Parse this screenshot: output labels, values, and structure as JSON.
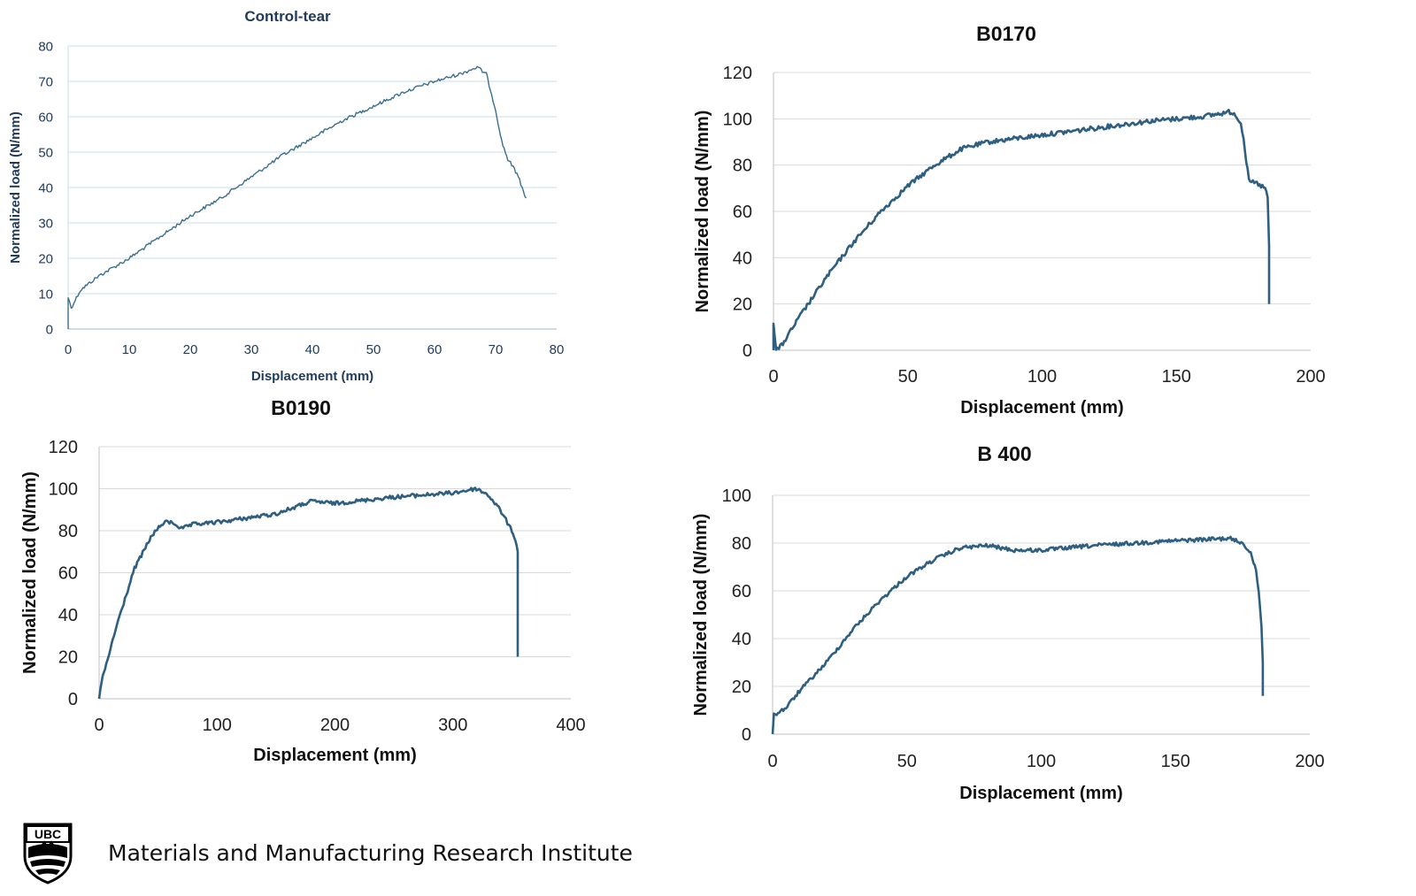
{
  "chart_data": [
    {
      "type": "line",
      "title": "Control-tear",
      "xlabel": "Displacement (mm)",
      "ylabel": "Normalized load (N/mm)",
      "xlim": [
        0,
        80
      ],
      "ylim": [
        0,
        80
      ],
      "xticks": [
        "0",
        "10",
        "20",
        "30",
        "40",
        "50",
        "60",
        "70",
        "80"
      ],
      "yticks": [
        "0",
        "10",
        "20",
        "30",
        "40",
        "50",
        "60",
        "70",
        "80"
      ],
      "grid": "horizontal",
      "color": "#3b6f8f",
      "series": [
        {
          "x": [
            0,
            0,
            0.5,
            2,
            5,
            10,
            15,
            20,
            25,
            30,
            35,
            40,
            45,
            50,
            55,
            60,
            64,
            67,
            68.5,
            70,
            71,
            72,
            73.5,
            75
          ],
          "y": [
            0,
            9,
            6,
            11,
            15,
            20,
            26,
            32,
            37,
            43,
            49,
            54,
            59,
            63,
            67,
            70,
            72,
            74,
            72,
            62,
            53,
            48,
            44,
            37
          ]
        }
      ]
    },
    {
      "type": "line",
      "title": "B0170",
      "xlabel": "Displacement (mm)",
      "ylabel": "Normalized load (N/mm)",
      "xlim": [
        0,
        200
      ],
      "ylim": [
        0,
        120
      ],
      "xticks": [
        "0",
        "50",
        "100",
        "150",
        "200"
      ],
      "yticks": [
        "0",
        "20",
        "40",
        "60",
        "80",
        "100",
        "120"
      ],
      "grid": "horizontal",
      "color": "#2e5f80",
      "series": [
        {
          "x": [
            0,
            0,
            1,
            3,
            10,
            20,
            30,
            40,
            50,
            60,
            70,
            80,
            100,
            120,
            140,
            160,
            170,
            172,
            174,
            175,
            176,
            177,
            180,
            183,
            184,
            184.5,
            184.5
          ],
          "y": [
            0,
            12,
            0,
            2,
            15,
            32,
            47,
            60,
            71,
            80,
            87,
            90,
            93,
            96,
            99,
            101,
            103,
            102,
            98,
            92,
            82,
            73,
            72,
            70,
            66,
            45,
            20
          ]
        }
      ]
    },
    {
      "type": "line",
      "title": "B0190",
      "xlabel": "Displacement (mm)",
      "ylabel": "Normalized load (N/mm)",
      "xlim": [
        0,
        400
      ],
      "ylim": [
        0,
        120
      ],
      "xticks": [
        "0",
        "100",
        "200",
        "300",
        "400"
      ],
      "yticks": [
        "0",
        "20",
        "40",
        "60",
        "80",
        "100",
        "120"
      ],
      "grid": "horizontal",
      "color": "#2e5f80",
      "series": [
        {
          "x": [
            0,
            2,
            5,
            15,
            30,
            45,
            55,
            62,
            70,
            80,
            100,
            150,
            180,
            200,
            250,
            300,
            320,
            330,
            340,
            345,
            350,
            353,
            355,
            355
          ],
          "y": [
            0,
            8,
            14,
            35,
            62,
            78,
            84,
            84,
            81,
            83,
            84,
            88,
            94,
            93,
            96,
            98,
            100,
            97,
            90,
            85,
            80,
            76,
            70,
            20
          ]
        }
      ]
    },
    {
      "type": "line",
      "title": "B 400",
      "xlabel": "Displacement (mm)",
      "ylabel": "Normalized load (N/mm)",
      "xlim": [
        0,
        200
      ],
      "ylim": [
        0,
        100
      ],
      "xticks": [
        "0",
        "50",
        "100",
        "150",
        "200"
      ],
      "yticks": [
        "0",
        "20",
        "40",
        "60",
        "80",
        "100"
      ],
      "grid": "horizontal",
      "color": "#2e5f80",
      "series": [
        {
          "x": [
            0,
            0.5,
            2,
            5,
            10,
            20,
            30,
            40,
            50,
            60,
            70,
            80,
            90,
            100,
            120,
            150,
            170,
            175,
            178,
            180,
            181,
            182,
            182.5,
            182.5
          ],
          "y": [
            0,
            8,
            9,
            11,
            18,
            30,
            44,
            56,
            66,
            73,
            78,
            79,
            77,
            77,
            79,
            81,
            82,
            80,
            76,
            68,
            60,
            45,
            30,
            16
          ]
        }
      ]
    }
  ],
  "footer": {
    "logo_text": "UBC",
    "institute": "Materials and Manufacturing Research Institute"
  }
}
